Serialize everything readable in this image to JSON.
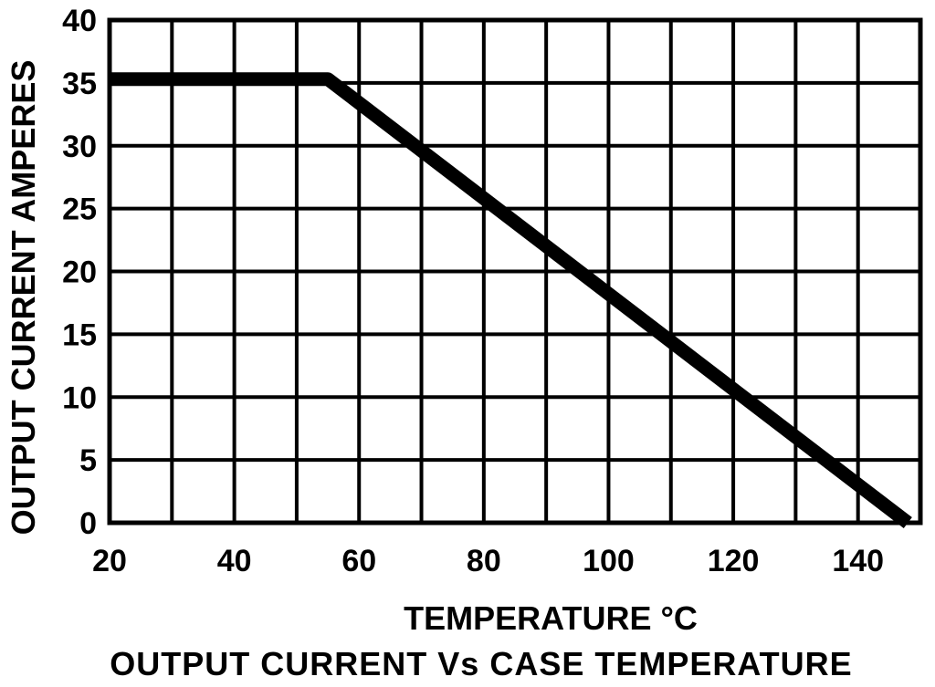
{
  "chart_data": {
    "type": "line",
    "title": "OUTPUT CURRENT Vs CASE TEMPERATURE",
    "xlabel": "TEMPERATURE °C",
    "ylabel": "OUTPUT CURRENT AMPERES",
    "xlim": [
      20,
      150
    ],
    "ylim": [
      0,
      40
    ],
    "x_ticks": [
      "20",
      "40",
      "60",
      "80",
      "100",
      "120",
      "140"
    ],
    "y_ticks": [
      "0",
      "5",
      "10",
      "15",
      "20",
      "25",
      "30",
      "35",
      "40"
    ],
    "grid": true,
    "series": [
      {
        "x": [
          20,
          55,
          148
        ],
        "values": [
          35.3,
          35.3,
          0
        ]
      }
    ],
    "colors": {
      "line": "#000000",
      "grid": "#000000",
      "background": "#ffffff"
    }
  }
}
